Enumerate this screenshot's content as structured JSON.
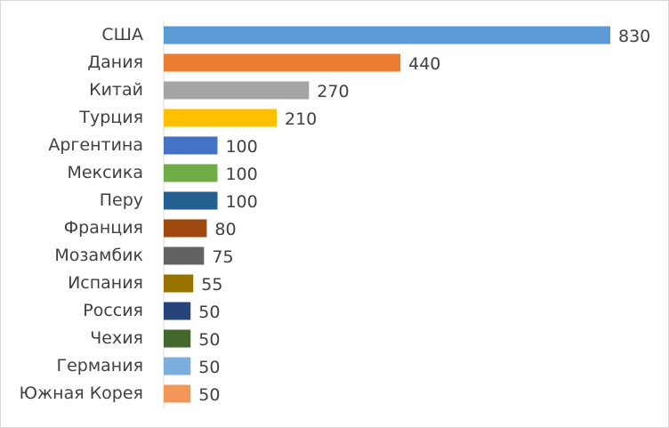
{
  "chart_data": {
    "type": "bar",
    "orientation": "horizontal",
    "categories": [
      "США",
      "Дания",
      "Китай",
      "Турция",
      "Аргентина",
      "Мексика",
      "Перу",
      "Франция",
      "Мозамбик",
      "Испания",
      "Россия",
      "Чехия",
      "Германия",
      "Южная Корея"
    ],
    "values": [
      830,
      440,
      270,
      210,
      100,
      100,
      100,
      80,
      75,
      55,
      50,
      50,
      50,
      50
    ],
    "colors": [
      "#5b9bd5",
      "#ed7d31",
      "#a5a5a5",
      "#ffc000",
      "#4472c4",
      "#70ad47",
      "#255e91",
      "#9e480e",
      "#636363",
      "#997300",
      "#264478",
      "#43682b",
      "#7cafdd",
      "#f1975a"
    ],
    "data_labels": true
  }
}
